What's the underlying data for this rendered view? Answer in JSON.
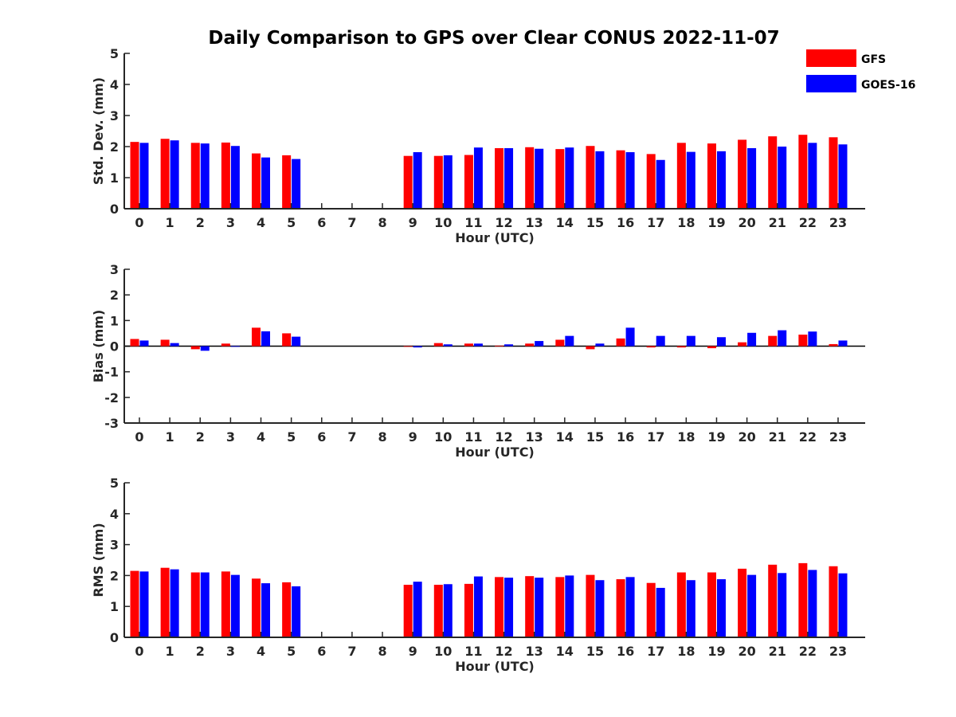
{
  "title": "Daily Comparison to GPS over Clear CONUS 2022-11-07",
  "legend": [
    {
      "name": "GFS",
      "color": "#ff0000"
    },
    {
      "name": "GOES-16",
      "color": "#0000ff"
    }
  ],
  "chart_data": [
    {
      "type": "bar",
      "id": "std",
      "title": "Daily Comparison to GPS over Clear CONUS 2022-11-07",
      "xlabel": "Hour (UTC)",
      "ylabel": "Std. Dev. (mm)",
      "ylim": [
        0,
        5
      ],
      "yticks": [
        0,
        1,
        2,
        3,
        4,
        5
      ],
      "categories": [
        "0",
        "1",
        "2",
        "3",
        "4",
        "5",
        "6",
        "7",
        "8",
        "9",
        "10",
        "11",
        "12",
        "13",
        "14",
        "15",
        "16",
        "17",
        "18",
        "19",
        "20",
        "21",
        "22",
        "23"
      ],
      "series": [
        {
          "name": "GFS",
          "color": "#ff0000",
          "values": [
            2.15,
            2.25,
            2.12,
            2.13,
            1.78,
            1.72,
            null,
            null,
            null,
            1.7,
            1.7,
            1.73,
            1.95,
            1.98,
            1.92,
            2.02,
            1.88,
            1.76,
            2.12,
            2.1,
            2.22,
            2.33,
            2.38,
            2.3
          ]
        },
        {
          "name": "GOES-16",
          "color": "#0000ff",
          "values": [
            2.12,
            2.2,
            2.1,
            2.02,
            1.65,
            1.6,
            null,
            null,
            null,
            1.82,
            1.72,
            1.97,
            1.95,
            1.93,
            1.97,
            1.85,
            1.82,
            1.57,
            1.83,
            1.85,
            1.95,
            2.0,
            2.12,
            2.07
          ]
        }
      ]
    },
    {
      "type": "bar",
      "id": "bias",
      "xlabel": "Hour (UTC)",
      "ylabel": "Bias (mm)",
      "ylim": [
        -3,
        3
      ],
      "yticks": [
        -3,
        -2,
        -1,
        0,
        1,
        2,
        3
      ],
      "categories": [
        "0",
        "1",
        "2",
        "3",
        "4",
        "5",
        "6",
        "7",
        "8",
        "9",
        "10",
        "11",
        "12",
        "13",
        "14",
        "15",
        "16",
        "17",
        "18",
        "19",
        "20",
        "21",
        "22",
        "23"
      ],
      "series": [
        {
          "name": "GFS",
          "color": "#ff0000",
          "values": [
            0.28,
            0.25,
            -0.12,
            0.1,
            0.72,
            0.5,
            null,
            null,
            null,
            -0.02,
            0.12,
            0.1,
            0.02,
            0.1,
            0.25,
            -0.12,
            0.3,
            -0.05,
            -0.05,
            -0.08,
            0.15,
            0.4,
            0.45,
            0.08
          ]
        },
        {
          "name": "GOES-16",
          "color": "#0000ff",
          "values": [
            0.22,
            0.12,
            -0.18,
            0.0,
            0.58,
            0.37,
            null,
            null,
            null,
            -0.05,
            0.07,
            0.1,
            0.07,
            0.2,
            0.4,
            0.1,
            0.72,
            0.4,
            0.4,
            0.35,
            0.52,
            0.62,
            0.57,
            0.22
          ]
        }
      ]
    },
    {
      "type": "bar",
      "id": "rms",
      "xlabel": "Hour (UTC)",
      "ylabel": "RMS (mm)",
      "ylim": [
        0,
        5
      ],
      "yticks": [
        0,
        1,
        2,
        3,
        4,
        5
      ],
      "categories": [
        "0",
        "1",
        "2",
        "3",
        "4",
        "5",
        "6",
        "7",
        "8",
        "9",
        "10",
        "11",
        "12",
        "13",
        "14",
        "15",
        "16",
        "17",
        "18",
        "19",
        "20",
        "21",
        "22",
        "23"
      ],
      "series": [
        {
          "name": "GFS",
          "color": "#ff0000",
          "values": [
            2.15,
            2.25,
            2.1,
            2.13,
            1.9,
            1.78,
            null,
            null,
            null,
            1.7,
            1.7,
            1.73,
            1.95,
            1.98,
            1.95,
            2.02,
            1.88,
            1.76,
            2.1,
            2.1,
            2.22,
            2.35,
            2.4,
            2.3
          ]
        },
        {
          "name": "GOES-16",
          "color": "#0000ff",
          "values": [
            2.13,
            2.2,
            2.1,
            2.02,
            1.75,
            1.65,
            null,
            null,
            null,
            1.8,
            1.72,
            1.97,
            1.93,
            1.93,
            2.0,
            1.85,
            1.95,
            1.6,
            1.85,
            1.88,
            2.02,
            2.08,
            2.18,
            2.07
          ]
        }
      ]
    }
  ]
}
